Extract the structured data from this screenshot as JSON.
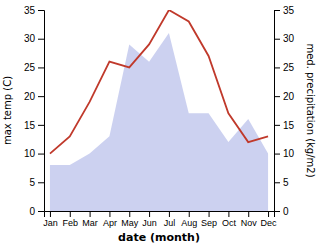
{
  "chart_data": {
    "type": "line",
    "categories": [
      "Jan",
      "Feb",
      "Mar",
      "Apr",
      "May",
      "Jun",
      "Jul",
      "Aug",
      "Sep",
      "Oct",
      "Nov",
      "Dec"
    ],
    "series": [
      {
        "type": "area",
        "axis": "y2",
        "color": "#b0b8e8",
        "values": [
          8,
          8,
          10,
          13,
          29,
          26,
          31,
          17,
          17,
          12,
          16,
          10
        ]
      },
      {
        "type": "line",
        "color": "#c0392b",
        "values": [
          10,
          13,
          19,
          26,
          25,
          29,
          35,
          33,
          27,
          17,
          12,
          13
        ]
      }
    ],
    "xlabel": "date (month)",
    "ylabel": "max temp (C)",
    "y2label": "med. precipitation (kg/m2)",
    "ylim": [
      0,
      35
    ],
    "yticks": [
      0,
      5,
      10,
      15,
      20,
      25,
      30,
      35
    ],
    "y2lim": [
      0,
      35
    ],
    "y2ticks": [
      0,
      5,
      10,
      15,
      20,
      25,
      30,
      35
    ],
    "grid": false
  }
}
